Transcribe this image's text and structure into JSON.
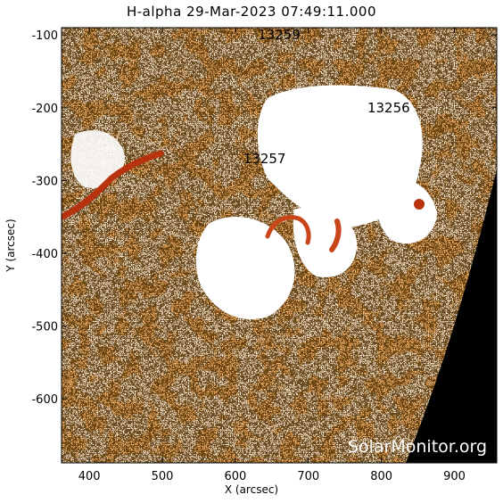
{
  "title": "H-alpha 29-Mar-2023 07:49:11.000",
  "x_axis": {
    "label": "X (arcsec)",
    "min": 362,
    "max": 958,
    "ticks": [
      400,
      500,
      600,
      700,
      800,
      900
    ]
  },
  "y_axis": {
    "label": "Y (arcsec)",
    "min": -688,
    "max": -90,
    "ticks": [
      -100,
      -200,
      -300,
      -400,
      -500,
      -600
    ]
  },
  "active_regions": [
    {
      "label": "13259",
      "x": 660,
      "y": -100
    },
    {
      "label": "13256",
      "x": 810,
      "y": -200
    },
    {
      "label": "13257",
      "x": 640,
      "y": -270
    }
  ],
  "watermark": "SolarMonitor.org",
  "colors": {
    "background": "#ffffff",
    "plage_light": "#fde8d2",
    "chromosphere": "#f07a2c",
    "filament": "#b8320d",
    "space": "#000000"
  }
}
